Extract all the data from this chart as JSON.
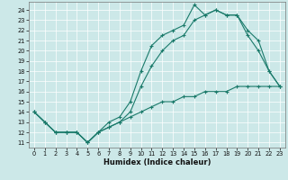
{
  "xlabel": "Humidex (Indice chaleur)",
  "background_color": "#cce8e8",
  "line_color": "#1a7a6a",
  "xlim": [
    -0.5,
    23.5
  ],
  "ylim": [
    10.5,
    24.8
  ],
  "yticks": [
    11,
    12,
    13,
    14,
    15,
    16,
    17,
    18,
    19,
    20,
    21,
    22,
    23,
    24
  ],
  "xticks": [
    0,
    1,
    2,
    3,
    4,
    5,
    6,
    7,
    8,
    9,
    10,
    11,
    12,
    13,
    14,
    15,
    16,
    17,
    18,
    19,
    20,
    21,
    22,
    23
  ],
  "line1_x": [
    0,
    1,
    2,
    3,
    4,
    5,
    6,
    7,
    8,
    9,
    10,
    11,
    12,
    13,
    14,
    15,
    16,
    17,
    18,
    19,
    20,
    21,
    22,
    23
  ],
  "line1_y": [
    14,
    13,
    12,
    12,
    12,
    11,
    12,
    13,
    13.5,
    15,
    18,
    20.5,
    21.5,
    22,
    22.5,
    24.5,
    23.5,
    24,
    23.5,
    23.5,
    21.5,
    20,
    18,
    16.5
  ],
  "line2_x": [
    0,
    1,
    2,
    3,
    4,
    5,
    6,
    7,
    8,
    9,
    10,
    11,
    12,
    13,
    14,
    15,
    16,
    17,
    18,
    19,
    20,
    21,
    22,
    23
  ],
  "line2_y": [
    14,
    13,
    12,
    12,
    12,
    11,
    12,
    12.5,
    13,
    14,
    16.5,
    18.5,
    20,
    21,
    21.5,
    23,
    23.5,
    24,
    23.5,
    23.5,
    22,
    21,
    18,
    16.5
  ],
  "line3_x": [
    0,
    1,
    2,
    3,
    4,
    5,
    6,
    7,
    8,
    9,
    10,
    11,
    12,
    13,
    14,
    15,
    16,
    17,
    18,
    19,
    20,
    21,
    22,
    23
  ],
  "line3_y": [
    14,
    13,
    12,
    12,
    12,
    11,
    12,
    12.5,
    13,
    13.5,
    14,
    14.5,
    15,
    15,
    15.5,
    15.5,
    16,
    16,
    16,
    16.5,
    16.5,
    16.5,
    16.5,
    16.5
  ]
}
